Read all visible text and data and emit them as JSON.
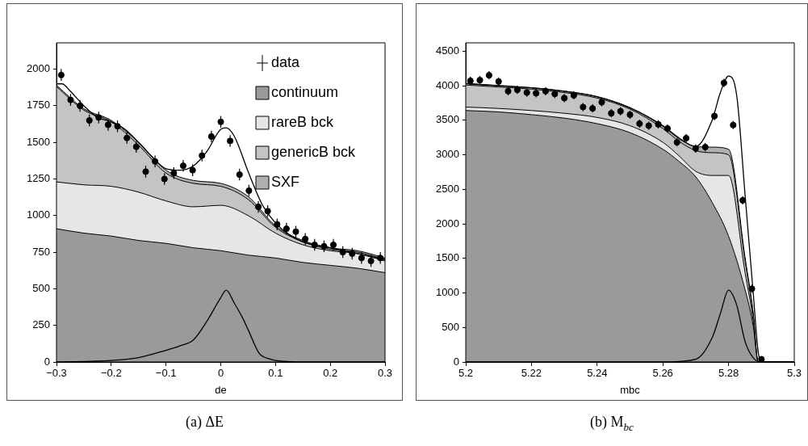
{
  "chart_data": [
    {
      "type": "area",
      "stacked": true,
      "xlabel": "de",
      "legend": "top right",
      "marker": "none",
      "grid": false,
      "xlim": [
        -0.3,
        0.3
      ],
      "xticks": [
        -0.3,
        -0.2,
        -0.1,
        0,
        0.1,
        0.2,
        0.3
      ],
      "ylim": [
        0,
        2180
      ],
      "yticks": [
        0,
        250,
        500,
        750,
        1000,
        1250,
        1500,
        1750,
        2000
      ],
      "x": [
        -0.3,
        -0.25,
        -0.2,
        -0.15,
        -0.1,
        -0.05,
        0,
        0.05,
        0.1,
        0.15,
        0.2,
        0.25,
        0.3
      ],
      "annotations": [
        "(a) ΔE"
      ],
      "series": [
        {
          "type": "scatter",
          "marker": "circle",
          "name": "data",
          "color": "#000000",
          "x": [
            -0.2914,
            -0.2743,
            -0.2571,
            -0.24,
            -0.2229,
            -0.2057,
            -0.1886,
            -0.1714,
            -0.1543,
            -0.1371,
            -0.12,
            -0.1029,
            -0.0857,
            -0.0686,
            -0.0514,
            -0.0343,
            -0.0171,
            0,
            0.0171,
            0.0343,
            0.0514,
            0.0686,
            0.0857,
            0.1029,
            0.12,
            0.1371,
            0.1543,
            0.1714,
            0.1886,
            0.2057,
            0.2229,
            0.24,
            0.2571,
            0.2743,
            0.2914
          ],
          "values": [
            1960,
            1790,
            1750,
            1650,
            1670,
            1620,
            1610,
            1530,
            1470,
            1300,
            1370,
            1250,
            1290,
            1340,
            1310,
            1410,
            1540,
            1640,
            1510,
            1280,
            1170,
            1060,
            1030,
            940,
            910,
            890,
            840,
            800,
            790,
            800,
            750,
            740,
            710,
            690,
            710
          ],
          "errors": [
            40,
            40,
            40,
            40,
            40,
            40,
            40,
            40,
            40,
            40,
            40,
            40,
            40,
            40,
            40,
            40,
            40,
            40,
            40,
            40,
            40,
            40,
            40,
            40,
            40,
            40,
            40,
            40,
            40,
            40,
            40,
            40,
            40,
            40,
            40
          ]
        },
        {
          "name": "continuum",
          "color": "#9a9a9a",
          "values": [
            910,
            880,
            860,
            830,
            810,
            780,
            760,
            730,
            710,
            680,
            660,
            640,
            610
          ]
        },
        {
          "name": "rareB bck",
          "color": "#e6e6e6",
          "values": [
            320,
            330,
            340,
            330,
            290,
            280,
            310,
            270,
            170,
            120,
            100,
            100,
            80
          ]
        },
        {
          "name": "genericB bck",
          "color": "#c4c4c4",
          "values": [
            650,
            510,
            440,
            320,
            190,
            160,
            130,
            110,
            40,
            20,
            10,
            10,
            10
          ]
        },
        {
          "name": "SXF",
          "color": "#b0b0b0",
          "values": [
            10,
            10,
            10,
            20,
            20,
            20,
            20,
            20,
            10,
            10,
            10,
            10,
            10
          ]
        },
        {
          "type": "line",
          "color": "#000000",
          "x": [
            -0.3,
            -0.29,
            -0.275,
            -0.25,
            -0.225,
            -0.2,
            -0.175,
            -0.15,
            -0.125,
            -0.1,
            -0.075,
            -0.05,
            -0.025,
            0,
            0.01,
            0.025,
            0.05,
            0.075,
            0.1,
            0.125,
            0.15,
            0.2,
            0.25,
            0.3
          ],
          "values": [
            1900,
            1900,
            1850,
            1750,
            1670,
            1640,
            1590,
            1500,
            1400,
            1320,
            1310,
            1340,
            1440,
            1590,
            1600,
            1540,
            1300,
            1080,
            950,
            870,
            820,
            780,
            740,
            700
          ]
        },
        {
          "type": "line",
          "color": "#000000",
          "x": [
            -0.3,
            -0.2,
            -0.15,
            -0.1,
            -0.075,
            -0.05,
            -0.025,
            0,
            0.01,
            0.025,
            0.04,
            0.05,
            0.07,
            0.09,
            0.1,
            0.15,
            0.3
          ],
          "values": [
            0,
            10,
            30,
            80,
            110,
            150,
            280,
            440,
            490,
            400,
            300,
            220,
            60,
            20,
            10,
            0,
            0
          ]
        }
      ]
    },
    {
      "type": "area",
      "stacked": true,
      "xlabel": "mbc",
      "marker": "none",
      "grid": false,
      "xlim": [
        5.2,
        5.3
      ],
      "xticks": [
        5.2,
        5.22,
        5.24,
        5.26,
        5.28,
        5.3
      ],
      "ylim": [
        0,
        4620
      ],
      "yticks": [
        0,
        500,
        1000,
        1500,
        2000,
        2500,
        3000,
        3500,
        4000,
        4500
      ],
      "x": [
        5.2,
        5.21,
        5.22,
        5.23,
        5.24,
        5.25,
        5.26,
        5.265,
        5.27,
        5.275,
        5.28,
        5.285,
        5.2875,
        5.289,
        5.3
      ],
      "annotations": [
        "(b) M$_{bc}$"
      ],
      "series": [
        {
          "type": "scatter",
          "marker": "circle",
          "color": "#000000",
          "x": [
            5.2014,
            5.2043,
            5.2071,
            5.21,
            5.2129,
            5.2157,
            5.2186,
            5.2214,
            5.2243,
            5.2271,
            5.23,
            5.2329,
            5.2357,
            5.2386,
            5.2414,
            5.2443,
            5.2471,
            5.25,
            5.2529,
            5.2557,
            5.2586,
            5.2614,
            5.2643,
            5.2671,
            5.27,
            5.2729,
            5.2757,
            5.2786,
            5.2814,
            5.2843,
            5.2871,
            5.29
          ],
          "values": [
            4070,
            4080,
            4150,
            4060,
            3920,
            3940,
            3900,
            3890,
            3920,
            3880,
            3820,
            3860,
            3690,
            3670,
            3760,
            3600,
            3630,
            3580,
            3450,
            3420,
            3440,
            3380,
            3180,
            3240,
            3090,
            3110,
            3560,
            4040,
            3430,
            2340,
            1060,
            40
          ],
          "errors": [
            60,
            60,
            60,
            60,
            60,
            60,
            60,
            60,
            60,
            60,
            60,
            60,
            60,
            60,
            60,
            60,
            60,
            60,
            60,
            60,
            60,
            60,
            60,
            60,
            60,
            60,
            60,
            60,
            60,
            60,
            60,
            20
          ]
        },
        {
          "color": "#9a9a9a",
          "values": [
            3640,
            3620,
            3580,
            3530,
            3450,
            3320,
            3080,
            2900,
            2680,
            2310,
            1820,
            1050,
            520,
            0,
            0
          ]
        },
        {
          "color": "#e6e6e6",
          "values": [
            50,
            50,
            60,
            70,
            90,
            100,
            100,
            80,
            80,
            390,
            880,
            250,
            80,
            0,
            0
          ]
        },
        {
          "color": "#c4c4c4",
          "values": [
            320,
            310,
            310,
            300,
            280,
            240,
            200,
            210,
            300,
            330,
            300,
            170,
            80,
            0,
            0
          ]
        },
        {
          "color": "#b0b0b0",
          "values": [
            20,
            20,
            20,
            20,
            20,
            20,
            30,
            40,
            60,
            80,
            80,
            50,
            30,
            0,
            0
          ]
        },
        {
          "type": "line",
          "color": "#000000",
          "x": [
            5.2,
            5.21,
            5.22,
            5.23,
            5.24,
            5.25,
            5.26,
            5.265,
            5.27,
            5.275,
            5.2775,
            5.28,
            5.2825,
            5.285,
            5.2875,
            5.289,
            5.29,
            5.3
          ],
          "values": [
            4030,
            4000,
            3970,
            3920,
            3840,
            3680,
            3420,
            3240,
            3120,
            3500,
            3900,
            4140,
            3850,
            2430,
            1000,
            150,
            0,
            0
          ]
        },
        {
          "type": "line",
          "color": "#000000",
          "x": [
            5.2,
            5.26,
            5.27,
            5.275,
            5.2775,
            5.28,
            5.2825,
            5.285,
            5.2875,
            5.29,
            5.3
          ],
          "values": [
            0,
            0,
            40,
            350,
            700,
            1040,
            820,
            300,
            60,
            0,
            0
          ]
        }
      ]
    }
  ]
}
